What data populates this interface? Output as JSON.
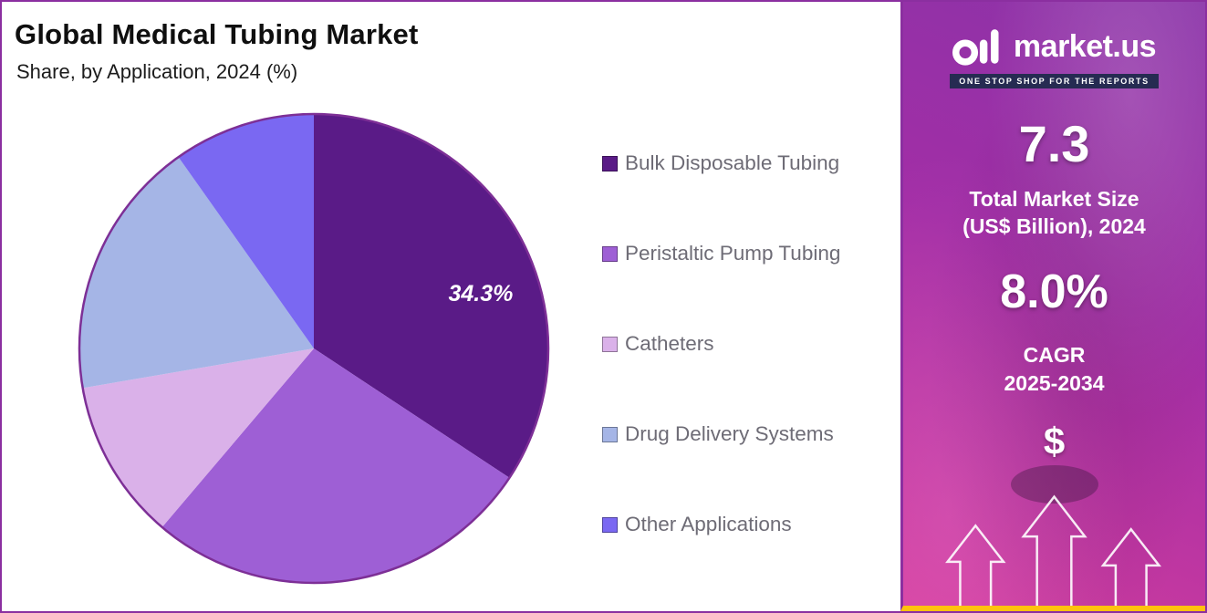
{
  "header": {
    "title": "Global Medical Tubing Market",
    "subtitle": "Share, by Application, 2024 (%)"
  },
  "chart_data": {
    "type": "pie",
    "title": "Global Medical Tubing Market",
    "subtitle": "Share, by Application, 2024 (%)",
    "unit": "%",
    "start_angle_deg": 0,
    "direction": "clockwise",
    "legend_position": "right",
    "slices": [
      {
        "label": "Bulk Disposable Tubing",
        "value": 34.3,
        "color": "#5a1b87",
        "data_label": "34.3%"
      },
      {
        "label": "Peristaltic Pump Tubing",
        "value": 26.9,
        "color": "#9e5fd5",
        "data_label": ""
      },
      {
        "label": "Catheters",
        "value": 11.1,
        "color": "#dab1e9",
        "data_label": ""
      },
      {
        "label": "Drug Delivery Systems",
        "value": 17.9,
        "color": "#a5b5e6",
        "data_label": ""
      },
      {
        "label": "Other Applications",
        "value": 9.8,
        "color": "#7a68f2",
        "data_label": ""
      }
    ],
    "outline_color": "#7d2f96"
  },
  "sidebar": {
    "logo_text": "market.us",
    "logo_tagline": "ONE STOP SHOP FOR THE REPORTS",
    "market_size_value": "7.3",
    "market_size_label_line1": "Total Market Size",
    "market_size_label_line2": "(US$ Billion), 2024",
    "cagr_value": "8.0%",
    "cagr_label": "CAGR",
    "cagr_period": "2025-2034",
    "dollar_symbol": "$",
    "accent_yellow": "#ffc20e",
    "border_purple": "#8b2fa0"
  }
}
